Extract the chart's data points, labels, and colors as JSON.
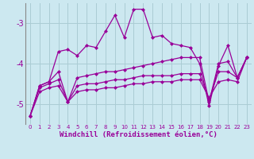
{
  "xlabel": "Windchill (Refroidissement éolien,°C)",
  "x": [
    0,
    1,
    2,
    3,
    4,
    5,
    6,
    7,
    8,
    9,
    10,
    11,
    12,
    13,
    14,
    15,
    16,
    17,
    18,
    19,
    20,
    21,
    22,
    23
  ],
  "line1": [
    -5.3,
    -4.55,
    -4.45,
    -3.7,
    -3.65,
    -3.8,
    -3.55,
    -3.6,
    -3.2,
    -2.8,
    -3.35,
    -2.65,
    -2.65,
    -3.35,
    -3.3,
    -3.5,
    -3.55,
    -3.6,
    -4.0,
    -5.05,
    -4.05,
    -3.55,
    -4.35,
    -3.85
  ],
  "line2": [
    -5.3,
    -4.55,
    -4.45,
    -4.2,
    -4.95,
    -4.35,
    -4.3,
    -4.25,
    -4.2,
    -4.2,
    -4.15,
    -4.1,
    -4.05,
    -4.0,
    -3.95,
    -3.9,
    -3.85,
    -3.85,
    -3.85,
    -4.95,
    -4.0,
    -3.95,
    -4.35,
    -3.85
  ],
  "line3": [
    -5.3,
    -4.6,
    -4.5,
    -4.4,
    -4.95,
    -4.55,
    -4.5,
    -4.5,
    -4.45,
    -4.4,
    -4.4,
    -4.35,
    -4.3,
    -4.3,
    -4.3,
    -4.3,
    -4.25,
    -4.25,
    -4.25,
    -4.9,
    -4.2,
    -4.2,
    -4.35,
    -3.85
  ],
  "line4": [
    -5.3,
    -4.7,
    -4.6,
    -4.55,
    -4.95,
    -4.7,
    -4.65,
    -4.65,
    -4.6,
    -4.6,
    -4.55,
    -4.5,
    -4.5,
    -4.45,
    -4.45,
    -4.45,
    -4.4,
    -4.4,
    -4.4,
    -4.85,
    -4.45,
    -4.4,
    -4.45,
    -3.85
  ],
  "ylim": [
    -5.5,
    -2.5
  ],
  "yticks": [
    -5,
    -4,
    -3
  ],
  "bg_color": "#cce8f0",
  "line_color": "#990099",
  "grid_color": "#aaccd4",
  "markersize": 2.5,
  "linewidth": 0.9
}
